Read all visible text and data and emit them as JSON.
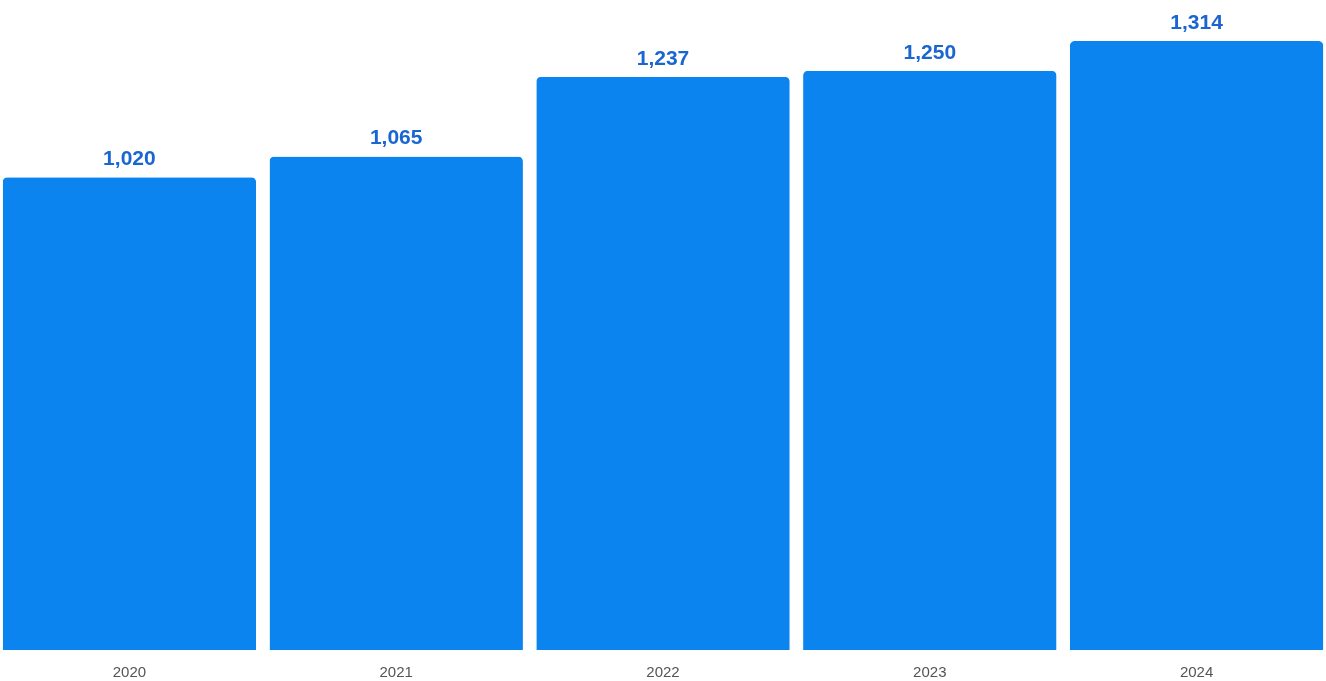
{
  "chart_data": {
    "type": "bar",
    "categories": [
      "2020",
      "2021",
      "2022",
      "2023",
      "2024"
    ],
    "values": [
      1020,
      1065,
      1237,
      1250,
      1314
    ],
    "value_labels": [
      "1,020",
      "1,065",
      "1,237",
      "1,250",
      "1,314"
    ],
    "color": "#0b84f0"
  }
}
